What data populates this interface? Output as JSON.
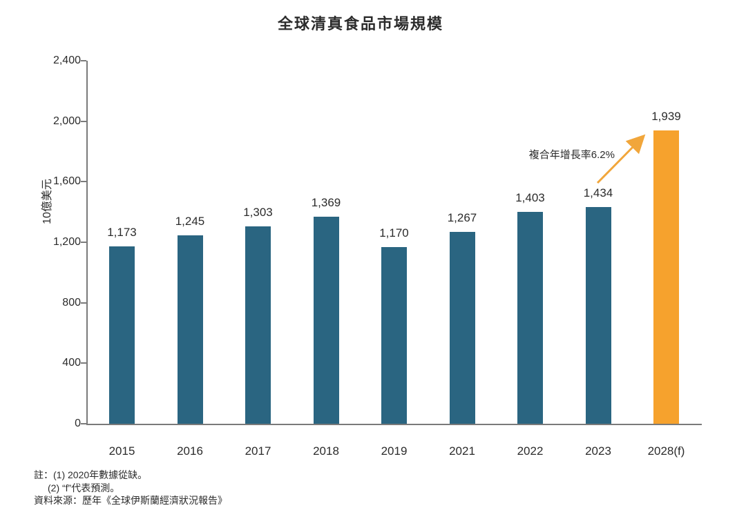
{
  "chart_data": {
    "type": "bar",
    "title": "全球清真食品市場規模",
    "xlabel": "",
    "ylabel": "10億美元",
    "categories": [
      "2015",
      "2016",
      "2017",
      "2018",
      "2019",
      "2021",
      "2022",
      "2023",
      "2028(f)"
    ],
    "values": [
      1173,
      1245,
      1303,
      1369,
      1170,
      1267,
      1403,
      1434,
      1939
    ],
    "value_labels": [
      "1,173",
      "1,245",
      "1,303",
      "1,369",
      "1,170",
      "1,267",
      "1,403",
      "1,434",
      "1,939"
    ],
    "ylim": [
      0,
      2400
    ],
    "ytick_interval": 400,
    "yticks": [
      "0",
      "400",
      "800",
      "1,200",
      "1,600",
      "2,000",
      "2,400"
    ],
    "grid": false,
    "legend": "none",
    "bar_color": "#2A6581",
    "forecast_index": 8,
    "forecast_bar_color": "#F6A22D",
    "annotation": {
      "text": "複合年增長率6.2%",
      "arrow_color": "#F1A63B"
    }
  },
  "notes": {
    "line1": "註：(1) 2020年數據從缺。",
    "line2": "(2) “f”代表預測。",
    "source": "資料來源：歷年《全球伊斯蘭經濟狀況報告》"
  }
}
